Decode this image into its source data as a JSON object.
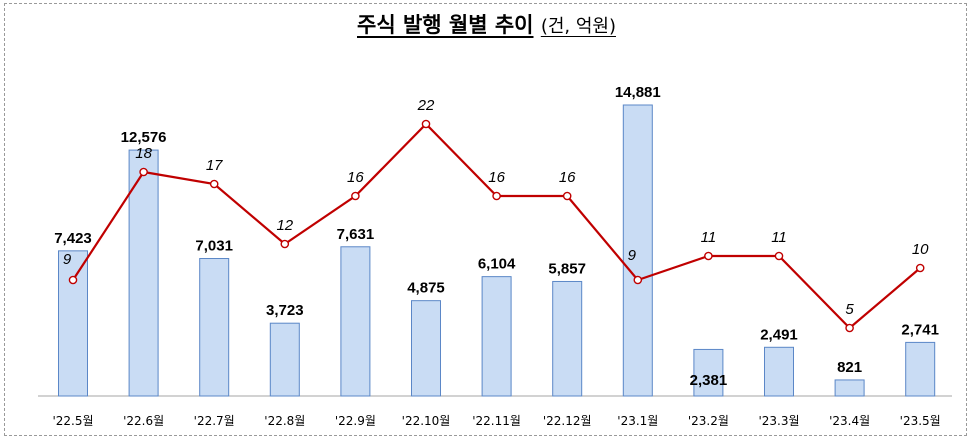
{
  "title": {
    "main": "주식 발행 월별 추이",
    "unit": "(건, 억원)"
  },
  "chart_data": {
    "type": "bar",
    "categories": [
      "'22.5월",
      "'22.6월",
      "'22.7월",
      "'22.8월",
      "'22.9월",
      "'22.10월",
      "'22.11월",
      "'22.12월",
      "'23.1월",
      "'23.2월",
      "'23.3월",
      "'23.4월",
      "'23.5월"
    ],
    "series": [
      {
        "type": "bar",
        "values": [
          7423,
          12576,
          7031,
          3723,
          7631,
          4875,
          6104,
          5857,
          14881,
          2381,
          2491,
          821,
          2741
        ],
        "labels": [
          "7,423",
          "12,576",
          "7,031",
          "3,723",
          "7,631",
          "4,875",
          "6,104",
          "5,857",
          "14,881",
          "2,381",
          "2,491",
          "821",
          "2,741"
        ],
        "color": "#c9dcf4"
      },
      {
        "type": "line",
        "values": [
          9,
          18,
          17,
          12,
          16,
          22,
          16,
          16,
          9,
          11,
          11,
          5,
          10
        ],
        "labels": [
          "9",
          "18",
          "17",
          "12",
          "16",
          "22",
          "16",
          "16",
          "9",
          "11",
          "11",
          "5",
          "10"
        ],
        "color": "#c00000"
      }
    ],
    "title": "주식 발행 월별 추이 (건, 억원)",
    "xlabel": "",
    "ylabel": "",
    "ylim_bar": [
      0,
      16000
    ],
    "ylim_line": [
      0,
      30
    ],
    "grid": false,
    "legend": "none"
  }
}
